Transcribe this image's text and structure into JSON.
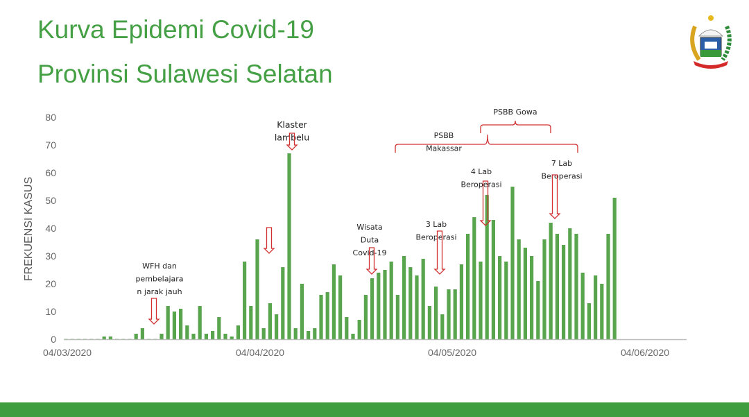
{
  "title": {
    "line1": "Kurva Epidemi Covid-19",
    "line2": "Provinsi Sulawesi Selatan"
  },
  "colors": {
    "title": "#45a045",
    "bar": "#58a54e",
    "annotation": "#d03030",
    "footer": "#3f9d3f"
  },
  "chart_data": {
    "type": "bar",
    "title": "",
    "xlabel": "",
    "ylabel": "FREKUENSI KASUS",
    "ylim": [
      0,
      80
    ],
    "yticks": [
      0,
      10,
      20,
      30,
      40,
      50,
      60,
      70,
      80
    ],
    "xtick_labels": [
      "04/03/2020",
      "04/04/2020",
      "04/05/2020",
      "04/06/2020"
    ],
    "x_start": "04/03/2020",
    "x_interval": "daily",
    "grid": false,
    "values": [
      0,
      0,
      0,
      0,
      0,
      0,
      1,
      1,
      0,
      0,
      0,
      2,
      4,
      0,
      0,
      2,
      12,
      10,
      11,
      5,
      2,
      12,
      2,
      3,
      8,
      2,
      1,
      5,
      28,
      12,
      36,
      4,
      13,
      9,
      26,
      67,
      4,
      20,
      3,
      4,
      16,
      17,
      27,
      23,
      8,
      2,
      7,
      16,
      22,
      24,
      25,
      28,
      16,
      30,
      26,
      23,
      29,
      12,
      19,
      9,
      18,
      18,
      27,
      38,
      44,
      28,
      52,
      43,
      30,
      28,
      55,
      36,
      33,
      30,
      21,
      36,
      42,
      38,
      34,
      40,
      38,
      24,
      13,
      23,
      20,
      38,
      51
    ],
    "annotations": [
      {
        "lines": [
          "WFH dan",
          "pembelajara",
          "n jarak jauh"
        ],
        "type": "arrow"
      },
      {
        "lines": [],
        "type": "arrow"
      },
      {
        "lines": [
          "Klaster",
          "lambelu"
        ],
        "type": "arrow"
      },
      {
        "lines": [
          "Wisata",
          "Duta",
          "Covid-19"
        ],
        "type": "arrow"
      },
      {
        "lines": [
          "3 Lab",
          "Beroperasi"
        ],
        "type": "arrow"
      },
      {
        "lines": [
          "PSBB",
          "Makassar"
        ],
        "type": "bracket"
      },
      {
        "lines": [
          "PSBB Gowa"
        ],
        "type": "bracket"
      },
      {
        "lines": [
          "4 Lab",
          "Beroperasi"
        ],
        "type": "arrow"
      },
      {
        "lines": [
          "7 Lab",
          "Beroperasi"
        ],
        "type": "arrow"
      }
    ]
  }
}
